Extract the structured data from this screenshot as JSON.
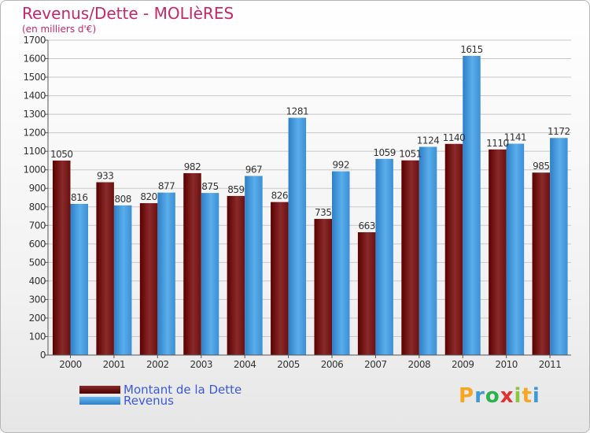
{
  "header": {
    "title": "Revenus/Dette - MOLIèRES",
    "subtitle": "(en milliers d'€)"
  },
  "legend": {
    "items": [
      {
        "label": "Montant de la Dette",
        "color": "#6b0a0a"
      },
      {
        "label": "Revenus",
        "color": "#4a9de0"
      }
    ]
  },
  "logo": {
    "text": "Proxiti",
    "colors": [
      "#f5a623",
      "#3d9ad8",
      "#2bb24c",
      "#e03232",
      "#8cc63f",
      "#f5a623",
      "#3d9ad8"
    ]
  },
  "chart_data": {
    "type": "bar",
    "categories": [
      "2000",
      "2001",
      "2002",
      "2003",
      "2004",
      "2005",
      "2006",
      "2007",
      "2008",
      "2009",
      "2010",
      "2011"
    ],
    "series": [
      {
        "name": "Montant de la Dette",
        "color": "#7a1a1a",
        "values": [
          1050,
          933,
          820,
          982,
          859,
          826,
          735,
          663,
          1051,
          1140,
          1110,
          985
        ]
      },
      {
        "name": "Revenus",
        "color": "#4a9de0",
        "values": [
          816,
          808,
          877,
          875,
          967,
          1281,
          992,
          1059,
          1124,
          1615,
          1141,
          1172
        ]
      }
    ],
    "data_labels": [
      [
        "1050",
        "933",
        "820",
        "982",
        "859",
        "826",
        "735",
        "663",
        "1051",
        "1140",
        "1110",
        "985"
      ],
      [
        "816",
        "808",
        "877",
        "875",
        "967",
        "1281",
        "992",
        "1059",
        "1124",
        "1615",
        "1141",
        "1172"
      ]
    ],
    "yticks": [
      0,
      100,
      200,
      300,
      400,
      500,
      600,
      700,
      800,
      900,
      1000,
      1100,
      1200,
      1300,
      1400,
      1500,
      1600,
      1700
    ],
    "ylim": [
      0,
      1700
    ],
    "grid": true
  }
}
